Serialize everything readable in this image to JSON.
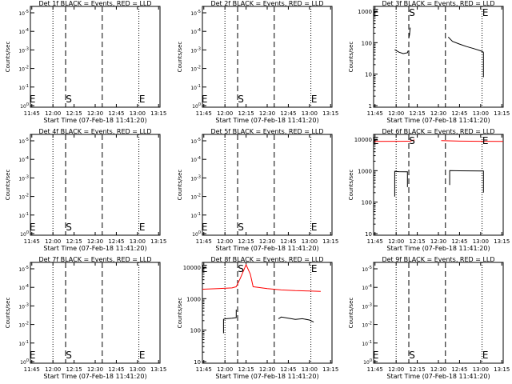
{
  "x_ticks": [
    "11:45",
    "12:00",
    "12:15",
    "12:30",
    "12:45",
    "13:00",
    "13:15"
  ],
  "xlabel": "Start Time (07-Feb-18 11:41:20)",
  "ylabel": "Counts/sec",
  "markers": {
    "event_start": "E",
    "s": "S",
    "event_end": "E"
  },
  "colors": {
    "events": "#000000",
    "lld": "#ff0000",
    "axes": "#000000"
  },
  "chart_data": [
    {
      "type": "line",
      "panel": "det1",
      "title": "Det 1f BLACK = Events, RED = LLD",
      "scale": "log-decade",
      "y_ticks": [
        "10^0",
        "10^-1",
        "10^-2",
        "10^-3",
        "10^-4",
        "10^-5"
      ],
      "series": []
    },
    {
      "type": "line",
      "panel": "det2",
      "title": "Det 2f BLACK = Events, RED = LLD",
      "scale": "log-decade",
      "y_ticks": [
        "10^0",
        "10^-1",
        "10^-2",
        "10^-3",
        "10^-4",
        "10^-5"
      ],
      "series": []
    },
    {
      "type": "line",
      "panel": "det3",
      "title": "Det 3f BLACK = Events, RED = LLD",
      "scale": "log-counts",
      "y_ticks": [
        "1",
        "10",
        "100",
        "1000"
      ],
      "ylim": [
        1,
        1000
      ],
      "series": [
        {
          "color": "events",
          "segments": [
            {
              "x": [
                "11:59",
                "12:02",
                "12:05",
                "12:08",
                "12:08.5"
              ],
              "y": [
                60,
                50,
                45,
                48,
                55
              ]
            },
            {
              "x": [
                "12:09",
                "12:09.5",
                "12:10"
              ],
              "y": [
                140,
                180,
                300
              ]
            },
            {
              "x": [
                "12:37",
                "12:40",
                "12:45",
                "12:50",
                "12:55",
                "13:00",
                "13:02"
              ],
              "y": [
                150,
                110,
                90,
                75,
                65,
                55,
                50
              ]
            },
            {
              "x": [
                "13:02",
                "13:02"
              ],
              "y": [
                50,
                8
              ]
            }
          ]
        }
      ]
    },
    {
      "type": "line",
      "panel": "det4",
      "title": "Det 4f BLACK = Events, RED = LLD",
      "scale": "log-decade",
      "y_ticks": [
        "10^0",
        "10^-1",
        "10^-2",
        "10^-3",
        "10^-4",
        "10^-5"
      ],
      "series": []
    },
    {
      "type": "line",
      "panel": "det5",
      "title": "Det 5f BLACK = Events, RED = LLD",
      "scale": "log-decade",
      "y_ticks": [
        "10^0",
        "10^-1",
        "10^-2",
        "10^-3",
        "10^-4",
        "10^-5"
      ],
      "series": []
    },
    {
      "type": "line",
      "panel": "det6",
      "title": "Det 6f BLACK = Events, RED = LLD",
      "scale": "log-counts",
      "y_ticks": [
        "10",
        "100",
        "1000",
        "10000"
      ],
      "ylim": [
        10,
        10000
      ],
      "series": [
        {
          "color": "lld",
          "segments": [
            {
              "x": [
                "11:44",
                "12:00",
                "12:10",
                "12:13"
              ],
              "y": [
                8500,
                8600,
                8700,
                9500
              ]
            },
            {
              "x": [
                "12:32",
                "12:45",
                "13:00",
                "13:16"
              ],
              "y": [
                9000,
                8700,
                8600,
                8500
              ]
            }
          ]
        },
        {
          "color": "events",
          "segments": [
            {
              "x": [
                "11:59",
                "11:59",
                "12:02",
                "12:08",
                "12:08"
              ],
              "y": [
                150,
                950,
                930,
                920,
                300
              ]
            },
            {
              "x": [
                "12:38",
                "12:38",
                "12:45",
                "13:02",
                "13:02"
              ],
              "y": [
                350,
                1000,
                990,
                980,
                200
              ]
            }
          ]
        }
      ]
    },
    {
      "type": "line",
      "panel": "det7",
      "title": "Det 7f BLACK = Events, RED = LLD",
      "scale": "log-decade",
      "y_ticks": [
        "10^0",
        "10^-1",
        "10^-2",
        "10^-3",
        "10^-4",
        "10^-5"
      ],
      "series": []
    },
    {
      "type": "line",
      "panel": "det8",
      "title": "Det 8f BLACK = Events, RED = LLD",
      "scale": "log-counts",
      "y_ticks": [
        "10",
        "100",
        "1000",
        "10000"
      ],
      "ylim": [
        10,
        10000
      ],
      "series": [
        {
          "color": "lld",
          "segments": [
            {
              "x": [
                "11:44",
                "11:55",
                "12:05",
                "12:08",
                "12:11",
                "12:15",
                "12:18",
                "12:20",
                "12:30",
                "12:40",
                "12:50",
                "13:00",
                "13:08"
              ],
              "y": [
                2000,
                2100,
                2200,
                2400,
                4500,
                12000,
                6000,
                2400,
                2100,
                1900,
                1800,
                1750,
                1700
              ]
            }
          ]
        },
        {
          "color": "events",
          "segments": [
            {
              "x": [
                "11:59",
                "11:59",
                "12:01",
                "12:05",
                "12:08",
                "12:08"
              ],
              "y": [
                80,
                220,
                230,
                240,
                250,
                450
              ]
            },
            {
              "x": [
                "12:38",
                "12:40",
                "12:45",
                "12:50",
                "12:55",
                "13:00",
                "13:03"
              ],
              "y": [
                230,
                260,
                240,
                220,
                230,
                210,
                180
              ]
            }
          ]
        }
      ]
    },
    {
      "type": "line",
      "panel": "det9",
      "title": "Det 9f BLACK = Events, RED = LLD",
      "scale": "log-decade",
      "y_ticks": [
        "10^0",
        "10^-1",
        "10^-2",
        "10^-3",
        "10^-4",
        "10^-5"
      ],
      "series": []
    }
  ]
}
